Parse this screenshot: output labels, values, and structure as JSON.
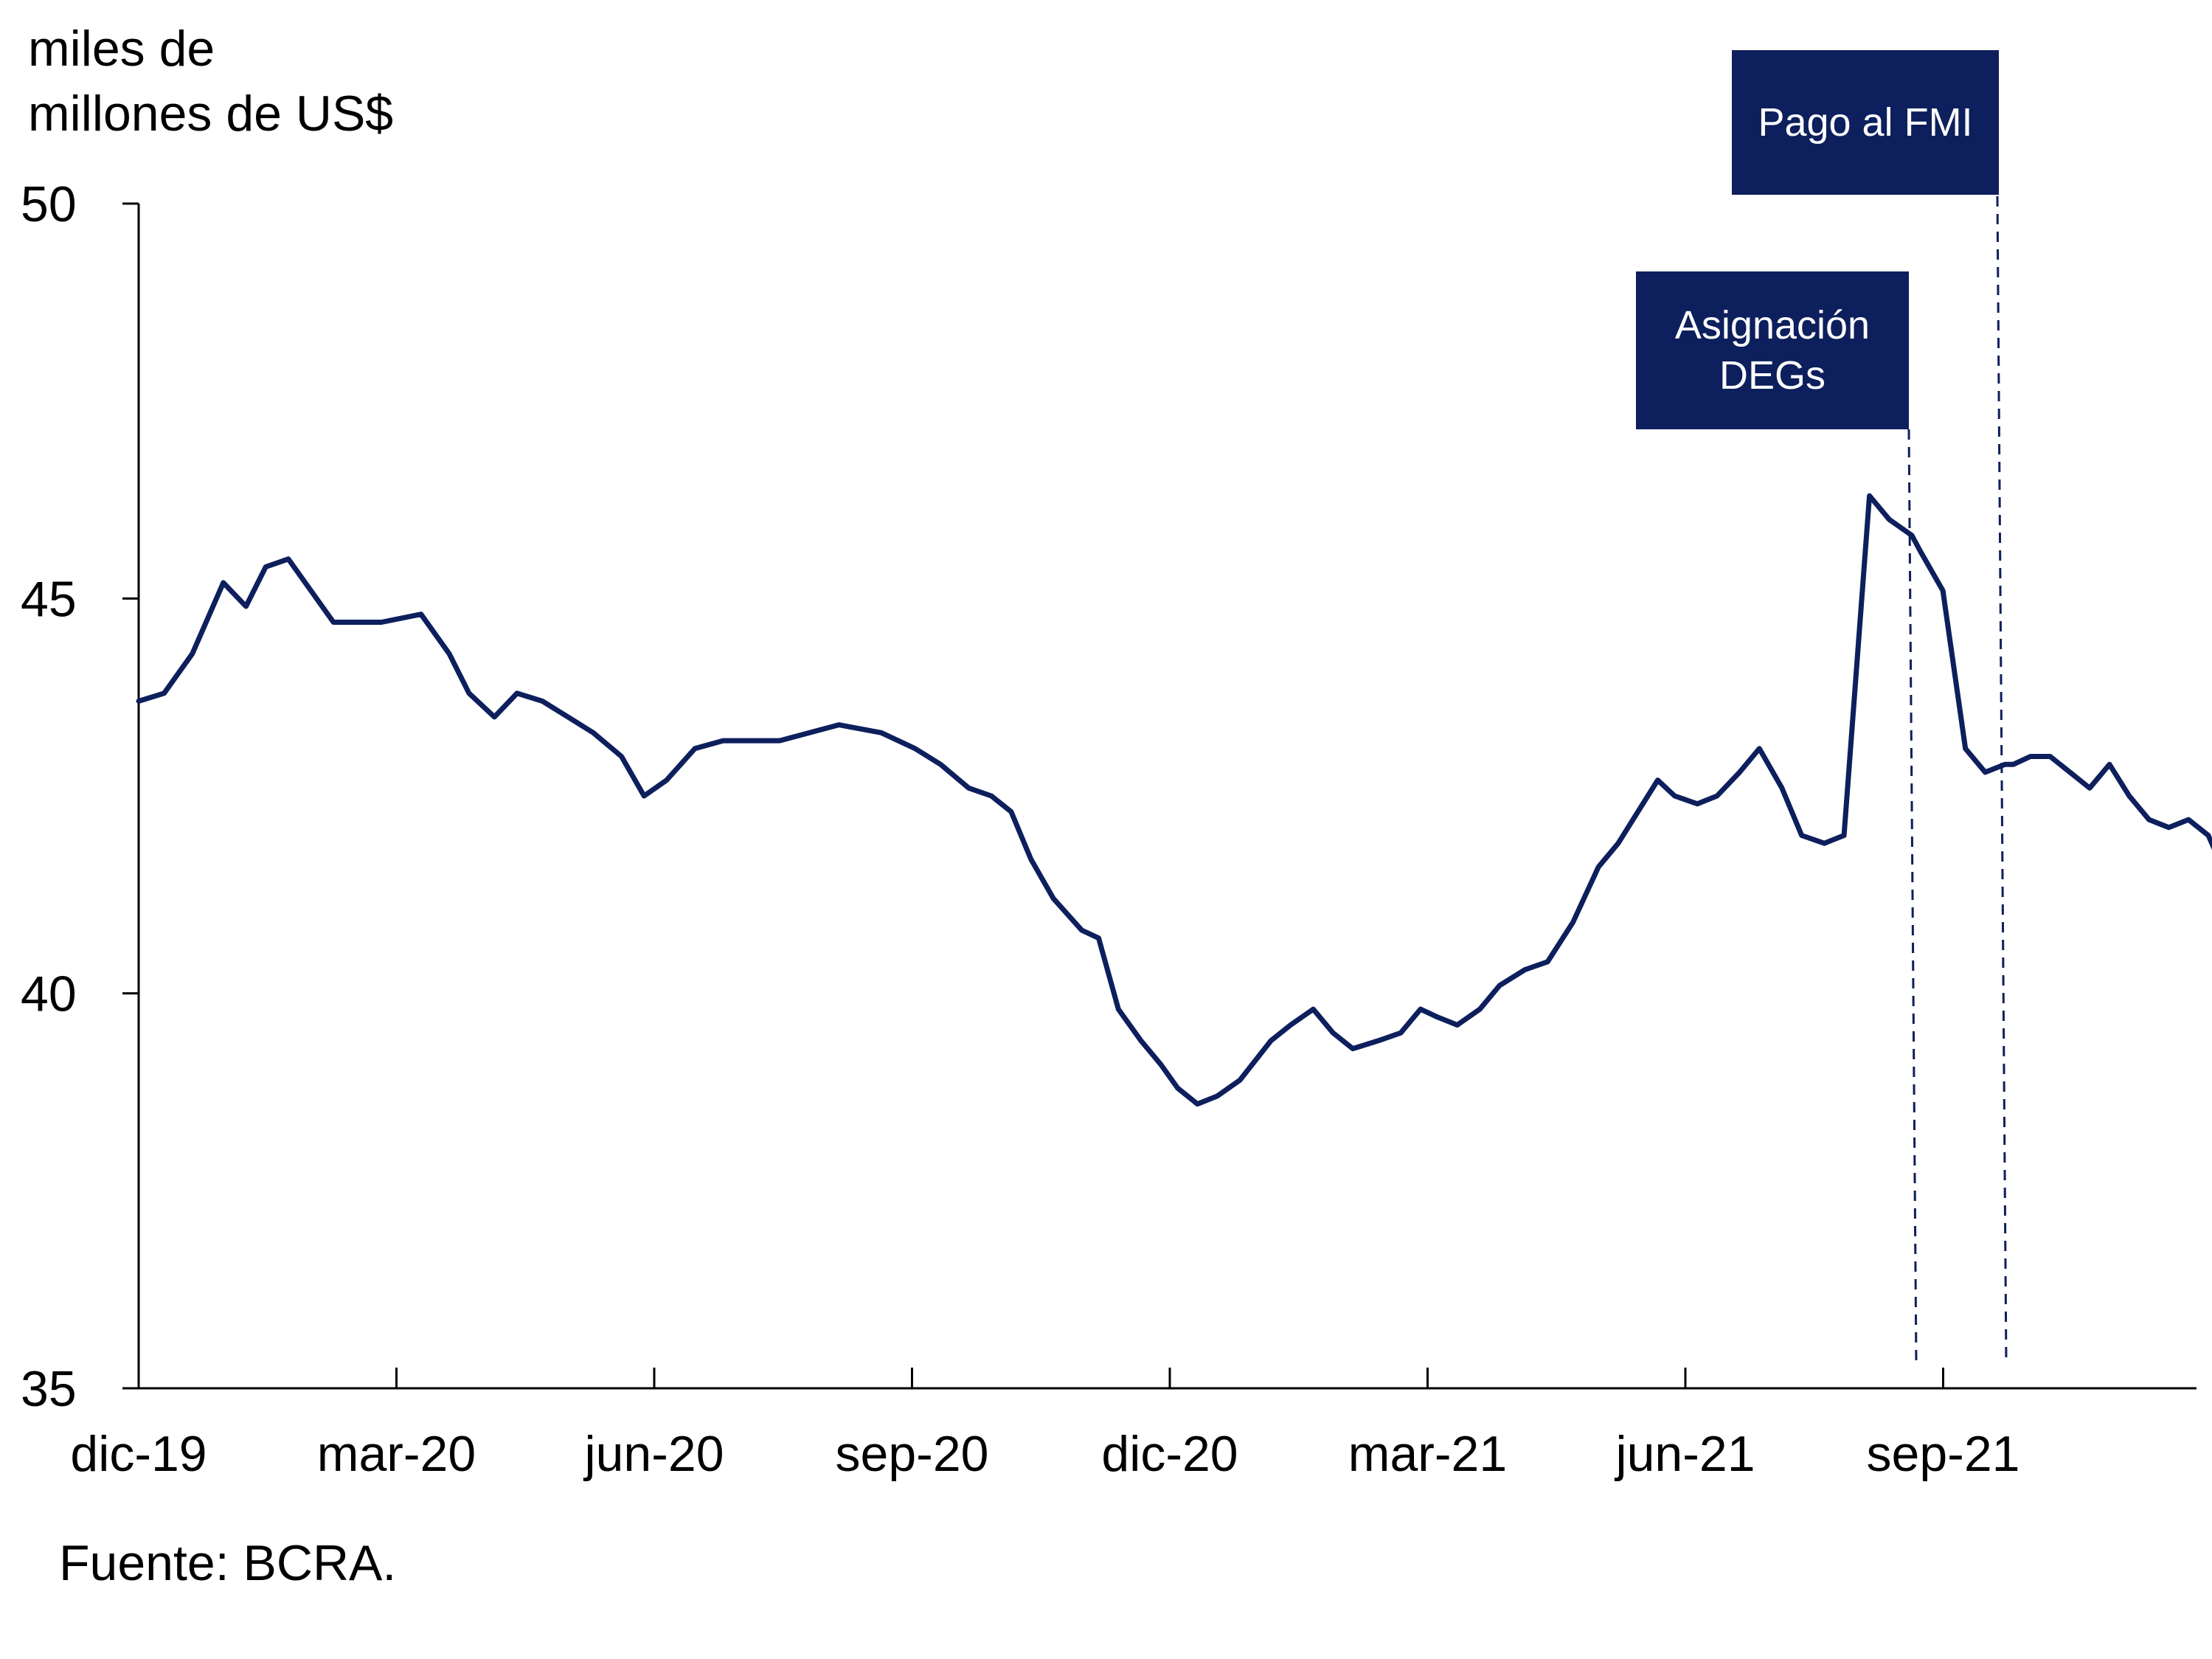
{
  "chart_data": {
    "type": "line",
    "ylabel": "miles de\nmillones de US$",
    "ylim": [
      35,
      50
    ],
    "yticks": [
      50,
      45,
      40,
      35
    ],
    "x_tick_labels": [
      "dic-19",
      "mar-20",
      "jun-20",
      "sep-20",
      "dic-20",
      "mar-21",
      "jun-21",
      "sep-21"
    ],
    "x_range": [
      "2019-12",
      "2021-12"
    ],
    "grid": false,
    "legend": "none",
    "source": "Fuente: BCRA.",
    "color": "#0d1f5c",
    "series": [
      {
        "x": [
          "2019-12-01",
          "2019-12-10",
          "2019-12-20",
          "2019-12-31",
          "2020-01-08",
          "2020-01-15",
          "2020-01-23",
          "2020-01-31",
          "2020-02-08",
          "2020-02-15",
          "2020-02-25",
          "2020-03-10",
          "2020-03-20",
          "2020-03-27",
          "2020-04-05",
          "2020-04-13",
          "2020-04-22",
          "2020-05-01",
          "2020-05-10",
          "2020-05-20",
          "2020-05-28",
          "2020-06-05",
          "2020-06-15",
          "2020-06-25",
          "2020-07-15",
          "2020-08-05",
          "2020-08-20",
          "2020-09-01",
          "2020-09-10",
          "2020-09-20",
          "2020-09-28",
          "2020-10-05",
          "2020-10-12",
          "2020-10-20",
          "2020-10-30",
          "2020-11-05",
          "2020-11-12",
          "2020-11-20",
          "2020-11-27",
          "2020-12-03",
          "2020-12-10",
          "2020-12-17",
          "2020-12-25",
          "2021-01-05",
          "2021-01-12",
          "2021-01-20",
          "2021-01-27",
          "2021-02-03",
          "2021-02-12",
          "2021-02-20",
          "2021-02-27",
          "2021-03-05",
          "2021-03-12",
          "2021-03-20",
          "2021-03-27",
          "2021-04-05",
          "2021-04-13",
          "2021-04-22",
          "2021-05-01",
          "2021-05-08",
          "2021-05-15",
          "2021-05-22",
          "2021-05-28",
          "2021-06-05",
          "2021-06-12",
          "2021-06-20",
          "2021-06-27",
          "2021-07-05",
          "2021-07-12",
          "2021-07-20",
          "2021-07-27",
          "2021-08-05",
          "2021-08-12",
          "2021-08-20",
          "2021-08-23",
          "2021-08-31",
          "2021-09-08",
          "2021-09-15",
          "2021-09-22",
          "2021-09-24",
          "2021-09-25",
          "2021-10-01",
          "2021-10-08",
          "2021-10-15",
          "2021-10-22",
          "2021-10-29",
          "2021-11-05",
          "2021-11-12",
          "2021-11-19",
          "2021-11-26",
          "2021-12-03",
          "2021-12-08",
          "2021-12-10"
        ],
        "y": [
          43.7,
          43.8,
          44.3,
          45.2,
          44.9,
          45.4,
          45.5,
          45.1,
          44.7,
          44.7,
          44.7,
          44.8,
          44.3,
          43.8,
          43.5,
          43.8,
          43.7,
          43.5,
          43.3,
          43.0,
          42.5,
          42.7,
          43.1,
          43.2,
          43.2,
          43.4,
          43.3,
          43.1,
          42.9,
          42.6,
          42.5,
          42.3,
          41.7,
          41.2,
          40.8,
          40.7,
          39.8,
          39.4,
          39.1,
          38.8,
          38.6,
          38.7,
          38.9,
          39.4,
          39.6,
          39.8,
          39.5,
          39.3,
          39.4,
          39.5,
          39.8,
          39.7,
          39.6,
          39.8,
          40.1,
          40.3,
          40.4,
          40.9,
          41.6,
          41.9,
          42.3,
          42.7,
          42.5,
          42.4,
          42.5,
          42.8,
          43.1,
          42.6,
          42.0,
          41.9,
          42.0,
          46.3,
          46.0,
          45.8,
          45.6,
          45.1,
          43.1,
          42.8,
          42.9,
          42.9,
          42.9,
          43.0,
          43.0,
          42.8,
          42.6,
          42.9,
          42.5,
          42.2,
          42.1,
          42.2,
          42.0,
          41.6,
          41.5
        ]
      }
    ],
    "annotations": [
      {
        "text": "Asignación\nDEGs",
        "x": "2021-08-23"
      },
      {
        "text": "Pago al FMI",
        "x": "2021-09-25"
      }
    ]
  }
}
